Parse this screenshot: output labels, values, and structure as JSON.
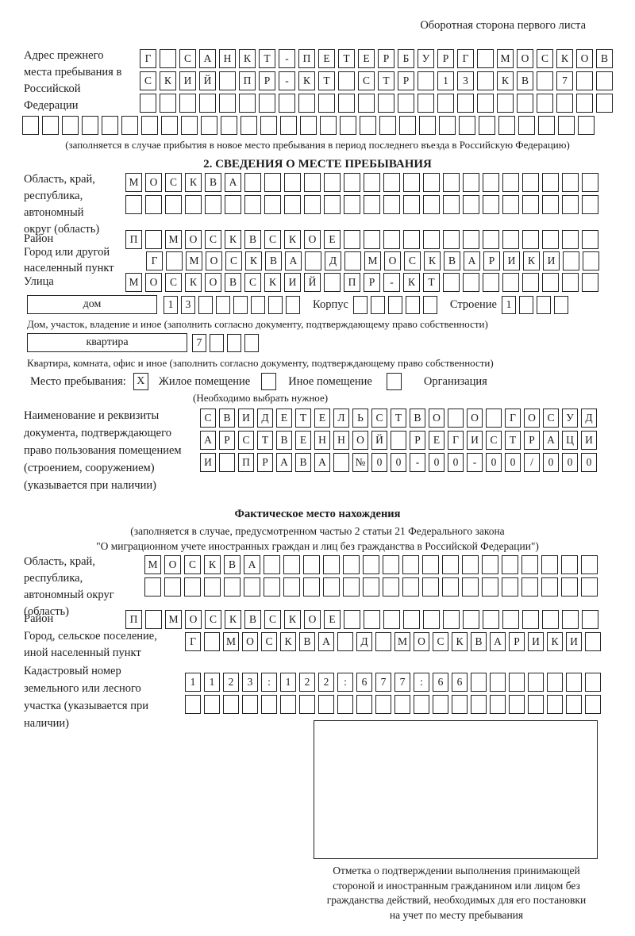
{
  "colors": {
    "ink": "#1c1c1c",
    "paper": "#ffffff"
  },
  "page": {
    "header_note": "Оборотная сторона первого листа"
  },
  "prev_address": {
    "label": "Адрес прежнего места пребывания в Российской Федерации",
    "rows": [
      "Г САНКТ-ПЕТЕРБУРГ МОСКОВ",
      "СКИЙ ПР-КТ СТР 13 КВ 7  ",
      "                        ",
      "                             "
    ],
    "caption": "(заполняется в случае прибытия в новое место пребывания в период последнего въезда в Российскую Федерацию)"
  },
  "section2": {
    "title": "2. СВЕДЕНИЯ О МЕСТЕ ПРЕБЫВАНИЯ",
    "oblast": {
      "label": "Область, край, республика, автономный округ (область)",
      "rows": [
        "МОСКВА                  ",
        "                        "
      ]
    },
    "rayon": {
      "label": "Район",
      "row": "П МОСКВСКОЕ             "
    },
    "gorod": {
      "label": "Город или другой населенный пункт",
      "row": "Г МОСКВА Д МОСКВАРИКИ  "
    },
    "ulitsa": {
      "label": "Улица",
      "row": "МОСКОВСКИЙ ПР-КТ        "
    },
    "dom": {
      "box_label": "дом",
      "cells": "13      ",
      "korpus_label": "Корпус",
      "korpus_cells": "     ",
      "stroenie_label": "Строение",
      "stroenie_cells": "1   ",
      "caption": "Дом, участок, владение и иное (заполнить согласно документу, подтверждающему право собственности)"
    },
    "kvartira": {
      "box_label": "квартира",
      "cells": "7   ",
      "caption": "Квартира, комната, офис и иное (заполнить согласно документу, подтверждающему право собственности)"
    },
    "mesto": {
      "label": "Место пребывания:",
      "options": [
        {
          "label": "Жилое помещение",
          "checked": "Х"
        },
        {
          "label": "Иное помещение",
          "checked": ""
        },
        {
          "label": "Организация",
          "checked": ""
        }
      ],
      "caption": "(Необходимо выбрать нужное)"
    },
    "document": {
      "label": "Наименование и реквизиты документа, подтверждающего право пользования помещением (строением, сооружением) (указывается при наличии)",
      "rows": [
        "СВИДЕТЕЛЬСТВО О ГОСУД",
        "АРСТВЕННОЙ РЕГИСТРАЦИ",
        "И ПРАВА №00-00-00/000"
      ]
    }
  },
  "fact_location": {
    "title": "Фактическое место нахождения",
    "caption_line1": "(заполняется в случае, предусмотренном частью 2 статьи 21 Федерального закона",
    "caption_line2": "\"О миграционном учете иностранных граждан и лиц без гражданства в Российской Федерации\")",
    "oblast": {
      "label": "Область, край, республика, автономный округ (область)",
      "rows": [
        "МОСКВА                 ",
        "                       "
      ]
    },
    "rayon": {
      "label": "Район",
      "row": "П МОСКВСКОЕ             "
    },
    "gorod": {
      "label": "Город, сельское поселение, иной населенный пункт",
      "row": "Г МОСКВА Д МОСКВАРИКИ "
    },
    "kadastr": {
      "label": "Кадастровый номер земельного или лесного участка (указывается при наличии)",
      "rows": [
        "1123:122:677:66       ",
        "                      "
      ]
    },
    "confirm_note_lines": [
      "Отметка о подтверждении выполнения принимающей",
      "стороной и иностранным гражданином или лицом без",
      "гражданства действий, необходимых для его постановки",
      "на учет по месту пребывания"
    ]
  }
}
